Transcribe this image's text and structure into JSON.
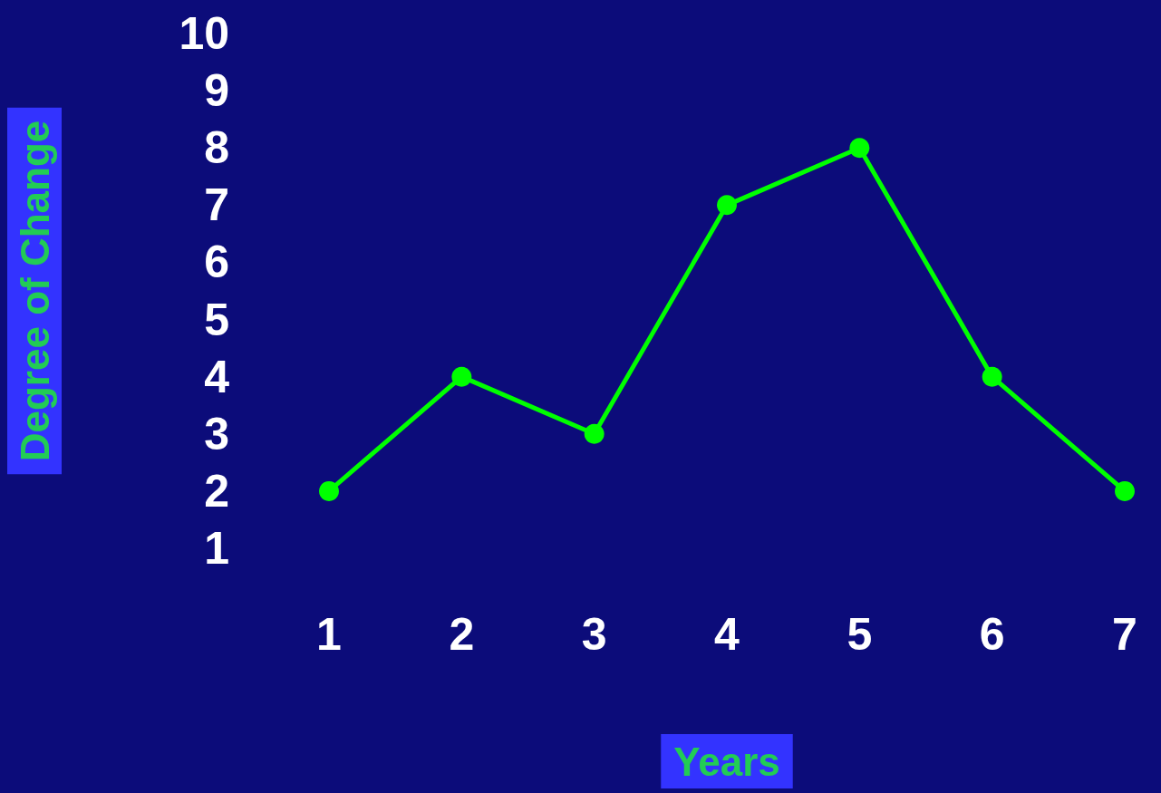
{
  "chart_data": {
    "type": "line",
    "xlabel": "Years",
    "ylabel": "Degree of Change",
    "x": [
      1,
      2,
      3,
      4,
      5,
      6,
      7
    ],
    "series": [
      {
        "color": "#00ff00",
        "values": [
          2,
          4,
          3,
          7,
          8,
          4,
          2
        ]
      }
    ],
    "xlim": [
      1,
      7
    ],
    "xticks": [
      1,
      2,
      3,
      4,
      5,
      6,
      7
    ],
    "ylim": [
      1,
      10
    ],
    "yticks": [
      1,
      2,
      3,
      4,
      5,
      6,
      7,
      8,
      9,
      10
    ],
    "grid": false,
    "marker": "circle",
    "line_style": "solid"
  }
}
